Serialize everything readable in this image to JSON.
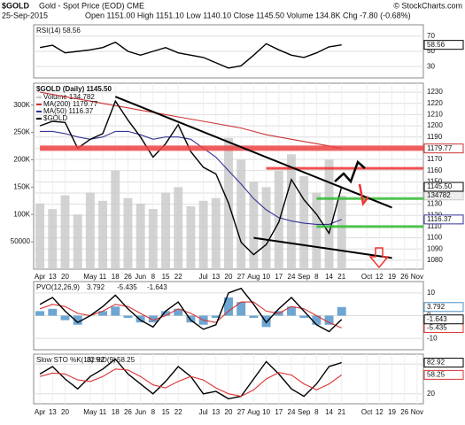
{
  "header": {
    "symbol": "$GOLD",
    "title": "Gold - Spot Price (EOD) CME",
    "date": "25-Sep-2015",
    "quote": "Open 1151.00  High 1151.10  Low 1140.10  Close 1145.50  Volume 134.8K  Chg -7.80 (-0.68%)",
    "credit": "© StockCharts.com"
  },
  "chart_data": [
    {
      "type": "line",
      "title": "RSI(14) 58.56",
      "ylim": [
        15,
        85
      ],
      "yticks": [
        70,
        50,
        30
      ],
      "series": [
        {
          "name": "RSI(14)",
          "color": "#000000",
          "end_label": "58.56",
          "values": [
            55,
            58,
            48,
            50,
            52,
            55,
            62,
            50,
            45,
            50,
            55,
            48,
            45,
            42,
            35,
            28,
            31,
            45,
            60,
            52,
            45,
            42,
            48,
            56,
            58.56,
            null,
            null,
            null,
            null,
            null,
            null
          ]
        }
      ]
    },
    {
      "type": "line",
      "title": "$GOLD (Daily) 1145.50",
      "ylim": [
        1072,
        1238
      ],
      "yticks": [
        1230,
        1220,
        1210,
        1200,
        1190,
        1180,
        1170,
        1160,
        1150,
        1140,
        1130,
        1120,
        1110,
        1100,
        1090,
        1080
      ],
      "y2lim": [
        0,
        340000
      ],
      "y2ticks": [
        {
          "value": 300000,
          "label": "300K"
        },
        {
          "value": 250000,
          "label": "250K"
        },
        {
          "value": 200000,
          "label": "200K"
        },
        {
          "value": 150000,
          "label": "150K"
        },
        {
          "value": 100000,
          "label": "100K"
        },
        50000
      ],
      "categories": [
        "Apr",
        "13",
        "20",
        null,
        "May",
        "11",
        "18",
        "26",
        "Jun",
        "8",
        "15",
        "22",
        null,
        "Jul",
        "13",
        "20",
        "27",
        "Aug",
        "10",
        "17",
        "24",
        "Sep",
        "8",
        "14",
        "21",
        null,
        "Oct",
        "12",
        "19",
        "26",
        "Nov"
      ],
      "series": [
        {
          "name": "Volume 134,782",
          "axis": "y2",
          "style": "bar",
          "color": "#c8c8c8",
          "end_label": "134782",
          "values": [
            120000,
            110000,
            135000,
            100000,
            140000,
            125000,
            180000,
            130000,
            120000,
            110000,
            140000,
            150000,
            115000,
            125000,
            130000,
            240000,
            200000,
            160000,
            150000,
            180000,
            210000,
            170000,
            140000,
            200000,
            134782,
            null,
            null,
            null,
            null,
            null,
            null
          ]
        },
        {
          "name": "MA(200) 1179.77",
          "color": "#cc3333",
          "end_label": "1179.77",
          "values": [
            1230,
            1228,
            1226,
            1224,
            1222,
            1220,
            1218,
            1216,
            1214,
            1212,
            1210,
            1208,
            1206,
            1204,
            1202,
            1200,
            1198,
            1195,
            1192,
            1190,
            1188,
            1186,
            1184,
            1182,
            1179.77,
            null,
            null,
            null,
            null,
            null,
            null
          ]
        },
        {
          "name": "MA(50) 1116.37",
          "color": "#333399",
          "end_label": "1116.37",
          "values": [
            1195,
            1195,
            1193,
            1190,
            1188,
            1190,
            1195,
            1195,
            1192,
            1188,
            1190,
            1190,
            1188,
            1180,
            1172,
            1160,
            1148,
            1135,
            1125,
            1118,
            1115,
            1113,
            1112,
            1112,
            1116.37,
            null,
            null,
            null,
            null,
            null,
            null
          ]
        },
        {
          "name": "$GOLD",
          "color": "#000000",
          "end_label": "1145.50",
          "values": [
            1200,
            1204,
            1203,
            1180,
            1188,
            1193,
            1222,
            1205,
            1190,
            1172,
            1184,
            1201,
            1177,
            1163,
            1157,
            1131,
            1096,
            1085,
            1094,
            1114,
            1152,
            1134,
            1121,
            1104,
            1145.5,
            null,
            null,
            null,
            null,
            null,
            null
          ]
        }
      ],
      "hlines": [
        {
          "value": 1180,
          "from": 0,
          "color": "#ee4444"
        },
        {
          "value": 1162,
          "from": 18,
          "color": "#ee3333"
        },
        {
          "value": 1135,
          "from": 22,
          "color": "#33bb33"
        },
        {
          "value": 1110,
          "from": 22,
          "color": "#33bb33"
        }
      ],
      "trendlines": [
        {
          "from": [
            6,
            1226
          ],
          "to": [
            28,
            1127
          ],
          "color": "#000000"
        },
        {
          "from": [
            17,
            1100
          ],
          "to": [
            28,
            1082
          ],
          "color": "#000000"
        }
      ]
    },
    {
      "type": "line",
      "title": "PVO(12,26,9)",
      "ylim": [
        -15,
        15
      ],
      "yticks": [
        10,
        0,
        -10
      ],
      "series": [
        {
          "name": "3.792",
          "style": "bar",
          "color": "#4a90c8",
          "end_label": "3.792",
          "values": [
            2,
            3,
            -2,
            -4,
            0,
            2,
            4,
            -1,
            -3,
            -3,
            2,
            3,
            -3,
            -4,
            -1,
            8,
            6,
            -1,
            -5,
            2,
            4,
            -1,
            -4,
            -4,
            3.792,
            null,
            null,
            null,
            null,
            null,
            null
          ]
        },
        {
          "name": "-5.435",
          "color": "#dd3333",
          "end_label": "-5.435",
          "values": [
            3,
            5,
            4,
            1,
            0,
            2,
            5,
            4,
            1,
            -2,
            0,
            3,
            1,
            -2,
            -3,
            2,
            6,
            6,
            2,
            1,
            4,
            3,
            0,
            -3,
            -5.435,
            null,
            null,
            null,
            null,
            null,
            null
          ]
        },
        {
          "name": "-1.643",
          "color": "#000000",
          "end_label": "-1.643",
          "values": [
            5,
            8,
            2,
            -3,
            0,
            4,
            9,
            3,
            -2,
            -5,
            2,
            6,
            -2,
            -6,
            -4,
            10,
            12,
            5,
            -3,
            3,
            8,
            2,
            -4,
            -7,
            -1.643,
            null,
            null,
            null,
            null,
            null,
            null
          ]
        }
      ]
    },
    {
      "type": "line",
      "title": "Slow STO %K(13) %D(9)",
      "ylim": [
        0,
        100
      ],
      "yticks": [
        80,
        20
      ],
      "categories": [
        "Apr",
        "13",
        "20",
        null,
        "May",
        "11",
        "18",
        "26",
        "Jun",
        "8",
        "15",
        "22",
        null,
        "Jul",
        "13",
        "20",
        "27",
        "Aug",
        "10",
        "17",
        "24",
        "Sep",
        "8",
        "14",
        "21",
        null,
        "Oct",
        "12",
        "19",
        "26",
        "Nov"
      ],
      "series": [
        {
          "name": "82.92",
          "color": "#000000",
          "end_label": "82.92",
          "values": [
            60,
            75,
            50,
            30,
            55,
            70,
            90,
            60,
            40,
            20,
            45,
            75,
            55,
            20,
            25,
            10,
            15,
            50,
            85,
            60,
            30,
            15,
            40,
            75,
            82.92,
            null,
            null,
            null,
            null,
            null,
            null
          ]
        },
        {
          "name": "58.25",
          "color": "#dd3333",
          "end_label": "58.25",
          "values": [
            55,
            62,
            60,
            48,
            45,
            55,
            70,
            68,
            55,
            38,
            32,
            45,
            55,
            48,
            32,
            20,
            15,
            28,
            50,
            63,
            58,
            40,
            28,
            40,
            58.25,
            null,
            null,
            null,
            null,
            null,
            null
          ]
        }
      ]
    }
  ]
}
